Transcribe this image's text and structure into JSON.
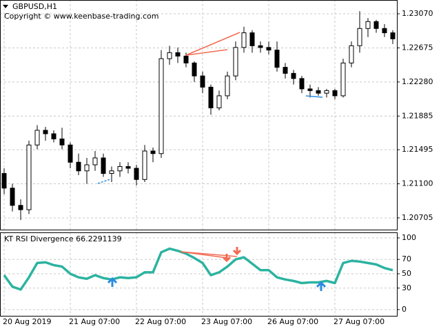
{
  "chart_data": [
    {
      "type": "candlestick",
      "title": "GBPUSD,H1",
      "subtitle": "Copyright © www.keenbase-trading.com",
      "ylim": [
        1.20569,
        1.2323
      ],
      "yticks": [
        {
          "value": 1.2307,
          "label": "1.23070"
        },
        {
          "value": 1.22675,
          "label": "1.22675"
        },
        {
          "value": 1.2228,
          "label": "1.22280"
        },
        {
          "value": 1.21885,
          "label": "1.21885"
        },
        {
          "value": 1.21495,
          "label": "1.21495"
        },
        {
          "value": 1.211,
          "label": "1.21100"
        },
        {
          "value": 1.20705,
          "label": "1.20705"
        }
      ],
      "grid": true,
      "up_color": "#ffffff",
      "down_color": "#000000",
      "open": [
        1.2122,
        1.2105,
        1.2085,
        1.208,
        1.2155,
        1.2172,
        1.2168,
        1.2162,
        1.2155,
        1.2135,
        1.2125,
        1.2132,
        1.214,
        1.2122,
        1.2125,
        1.213,
        1.2128,
        1.2115,
        1.2148,
        1.2145,
        1.2255,
        1.2262,
        1.2258,
        1.225,
        1.2235,
        1.2222,
        1.2198,
        1.2212,
        1.2235,
        1.2268,
        1.2285,
        1.227,
        1.2268,
        1.2265,
        1.2245,
        1.2238,
        1.2232,
        1.222,
        1.2218,
        1.2215,
        1.2218,
        1.2212,
        1.225,
        1.227,
        1.229,
        1.2298,
        1.229,
        1.2285
      ],
      "high": [
        1.2128,
        1.211,
        1.2092,
        1.216,
        1.2178,
        1.2176,
        1.2172,
        1.2175,
        1.2158,
        1.2145,
        1.214,
        1.2148,
        1.2145,
        1.213,
        1.2135,
        1.2135,
        1.2132,
        1.2155,
        1.2152,
        1.2265,
        1.227,
        1.2268,
        1.2262,
        1.2252,
        1.224,
        1.2225,
        1.2218,
        1.224,
        1.2275,
        1.2292,
        1.2288,
        1.2275,
        1.2275,
        1.2275,
        1.225,
        1.2242,
        1.2235,
        1.2225,
        1.2222,
        1.222,
        1.222,
        1.2255,
        1.2275,
        1.231,
        1.2302,
        1.23,
        1.2295,
        1.2288
      ],
      "low": [
        1.2098,
        1.2078,
        1.2068,
        1.2075,
        1.215,
        1.216,
        1.2158,
        1.215,
        1.2128,
        1.212,
        1.211,
        1.2125,
        1.2118,
        1.2112,
        1.2118,
        1.2122,
        1.2108,
        1.2112,
        1.2135,
        1.214,
        1.2248,
        1.225,
        1.2245,
        1.2228,
        1.2215,
        1.219,
        1.2195,
        1.2208,
        1.223,
        1.2262,
        1.2262,
        1.2262,
        1.226,
        1.224,
        1.2232,
        1.2225,
        1.2215,
        1.221,
        1.2212,
        1.221,
        1.2208,
        1.221,
        1.2245,
        1.2262,
        1.228,
        1.2285,
        1.228,
        1.2272
      ],
      "close": [
        1.2105,
        1.2085,
        1.208,
        1.2155,
        1.2172,
        1.2168,
        1.2162,
        1.2155,
        1.2135,
        1.2125,
        1.2132,
        1.214,
        1.2122,
        1.2125,
        1.213,
        1.2128,
        1.2115,
        1.2148,
        1.2145,
        1.2255,
        1.2262,
        1.2258,
        1.225,
        1.2235,
        1.2222,
        1.2198,
        1.2212,
        1.2235,
        1.2268,
        1.2285,
        1.227,
        1.2268,
        1.2265,
        1.2245,
        1.2238,
        1.2232,
        1.222,
        1.2218,
        1.2215,
        1.2218,
        1.2212,
        1.225,
        1.227,
        1.229,
        1.2298,
        1.229,
        1.2285,
        1.2278
      ]
    },
    {
      "type": "line",
      "title": "KT RSI Divergence 66.2291139",
      "categories": [
        "20 Aug 2019",
        null,
        null,
        null,
        null,
        null,
        null,
        null,
        "21 Aug 07:00",
        null,
        null,
        null,
        null,
        null,
        null,
        null,
        "22 Aug 07:00",
        null,
        null,
        null,
        null,
        null,
        null,
        null,
        "23 Aug 07:00",
        null,
        null,
        null,
        null,
        null,
        null,
        null,
        "26 Aug 07:00",
        null,
        null,
        null,
        null,
        null,
        null,
        null,
        "27 Aug 07:00",
        null,
        null,
        null,
        null,
        null,
        null,
        null
      ],
      "ylim": [
        -8.7,
        107.7
      ],
      "yticks": [
        0,
        30,
        50,
        70,
        100
      ],
      "grid": true,
      "color": "#2bb3a0",
      "values": [
        48,
        32,
        28,
        45,
        65,
        66,
        62,
        60,
        50,
        45,
        43,
        48,
        44,
        42,
        45,
        44,
        45,
        52,
        52,
        80,
        85,
        82,
        78,
        72,
        65,
        48,
        52,
        60,
        70,
        73,
        64,
        55,
        55,
        45,
        42,
        40,
        37,
        38,
        38,
        40,
        37,
        65,
        68,
        67,
        65,
        63,
        58,
        55
      ]
    }
  ]
}
